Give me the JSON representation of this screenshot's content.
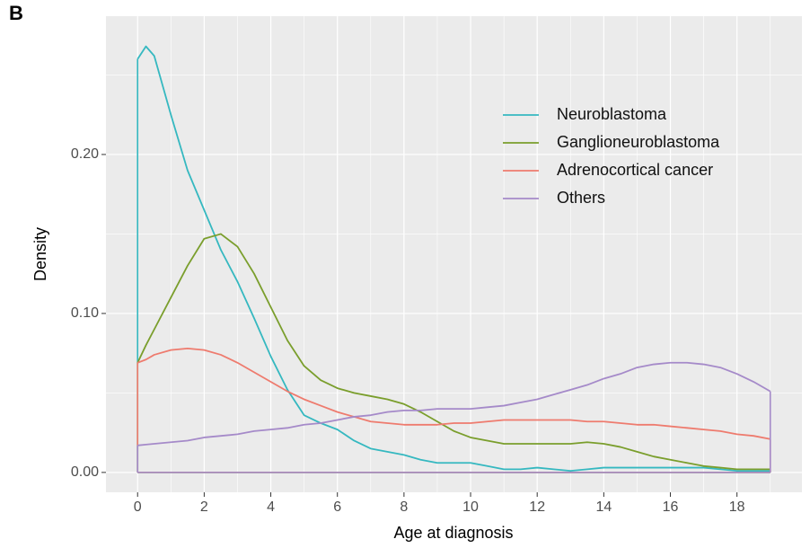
{
  "chart_data": {
    "type": "density",
    "panel_label": "B",
    "x_label": "Age at diagnosis",
    "y_label": "Density",
    "x": [
      0,
      0.25,
      0.5,
      1,
      1.5,
      2,
      2.5,
      3,
      3.5,
      4,
      4.5,
      5,
      5.5,
      6,
      6.5,
      7,
      7.5,
      8,
      8.5,
      9,
      9.5,
      10,
      10.5,
      11,
      11.5,
      12,
      12.5,
      13,
      13.5,
      14,
      14.5,
      15,
      15.5,
      16,
      16.5,
      17,
      17.5,
      18,
      18.5,
      19
    ],
    "series": [
      {
        "name": "Neuroblastoma",
        "color": "#35b8c0",
        "values": [
          0.26,
          0.268,
          0.262,
          0.225,
          0.19,
          0.165,
          0.14,
          0.12,
          0.097,
          0.073,
          0.052,
          0.036,
          0.031,
          0.027,
          0.02,
          0.015,
          0.013,
          0.011,
          0.008,
          0.006,
          0.006,
          0.006,
          0.004,
          0.002,
          0.002,
          0.003,
          0.002,
          0.001,
          0.002,
          0.003,
          0.003,
          0.003,
          0.003,
          0.003,
          0.003,
          0.003,
          0.002,
          0.001,
          0.001,
          0.001
        ]
      },
      {
        "name": "Ganglioneuroblastoma",
        "color": "#7a9e2c",
        "values": [
          0.069,
          0.08,
          0.09,
          0.11,
          0.13,
          0.147,
          0.15,
          0.142,
          0.125,
          0.104,
          0.083,
          0.067,
          0.058,
          0.053,
          0.05,
          0.048,
          0.046,
          0.043,
          0.038,
          0.032,
          0.026,
          0.022,
          0.02,
          0.018,
          0.018,
          0.018,
          0.018,
          0.018,
          0.019,
          0.018,
          0.016,
          0.013,
          0.01,
          0.008,
          0.006,
          0.004,
          0.003,
          0.002,
          0.002,
          0.002
        ]
      },
      {
        "name": "Adrenocortical cancer",
        "color": "#ee7b6e",
        "values": [
          0.069,
          0.071,
          0.074,
          0.077,
          0.078,
          0.077,
          0.074,
          0.069,
          0.063,
          0.057,
          0.051,
          0.046,
          0.042,
          0.038,
          0.035,
          0.032,
          0.031,
          0.03,
          0.03,
          0.03,
          0.031,
          0.031,
          0.032,
          0.033,
          0.033,
          0.033,
          0.033,
          0.033,
          0.032,
          0.032,
          0.031,
          0.03,
          0.03,
          0.029,
          0.028,
          0.027,
          0.026,
          0.024,
          0.023,
          0.021
        ]
      },
      {
        "name": "Others",
        "color": "#a58ac9",
        "values": [
          0.017,
          0.0175,
          0.018,
          0.019,
          0.02,
          0.022,
          0.023,
          0.024,
          0.026,
          0.027,
          0.028,
          0.03,
          0.031,
          0.033,
          0.035,
          0.036,
          0.038,
          0.039,
          0.039,
          0.04,
          0.04,
          0.04,
          0.041,
          0.042,
          0.044,
          0.046,
          0.049,
          0.052,
          0.055,
          0.059,
          0.062,
          0.066,
          0.068,
          0.069,
          0.069,
          0.068,
          0.066,
          0.062,
          0.057,
          0.051
        ]
      }
    ],
    "xlim": [
      -0.95,
      19.95
    ],
    "ylim": [
      -0.0125,
      0.287
    ],
    "xticks": [
      0,
      2,
      4,
      6,
      8,
      10,
      12,
      14,
      16,
      18
    ],
    "yticks": [
      {
        "value": 0,
        "label": "0.00"
      },
      {
        "value": 0.1,
        "label": "0.10"
      },
      {
        "value": 0.2,
        "label": "0.20"
      }
    ],
    "grid": true,
    "legend": "top-right"
  }
}
